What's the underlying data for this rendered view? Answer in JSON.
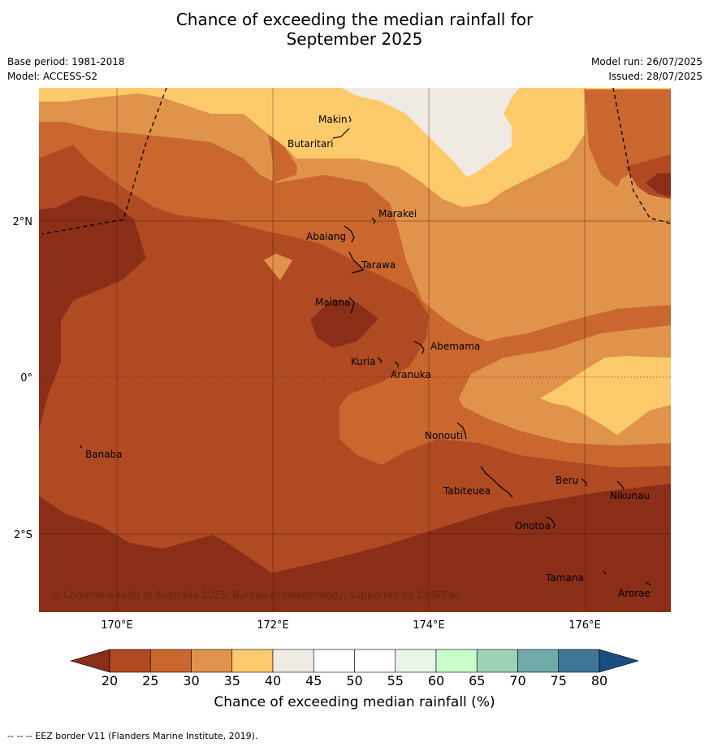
{
  "title_line1": "Chance of exceeding the median rainfall for",
  "title_line2": "September 2025",
  "meta_left": [
    "Base period: 1981-2018",
    "Model: ACCESS-S2"
  ],
  "meta_right": [
    "Model run: 26/07/2025",
    "Issued: 28/07/2025"
  ],
  "copyright": "© Commonwealth of Australia 2025, Bureau of Meteorology, supported by COSPPac",
  "lon_ticks": [
    "170°E",
    "172°E",
    "174°E",
    "176°E"
  ],
  "lat_ticks": [
    "2°N",
    "0°",
    "2°S"
  ],
  "places": [
    "Makin",
    "Butaritari",
    "Marakei",
    "Abaiang",
    "Tarawa",
    "Maiana",
    "Abemama",
    "Kuria",
    "Aranuka",
    "Nonouti",
    "Banaba",
    "Beru",
    "Tabiteuea",
    "Nikunau",
    "Onotoa",
    "Tamana",
    "Arorae"
  ],
  "colorbar": {
    "ticks": [
      "20",
      "25",
      "30",
      "35",
      "40",
      "45",
      "50",
      "55",
      "60",
      "65",
      "70",
      "75",
      "80"
    ],
    "colors": [
      "#8b2e18",
      "#b04a22",
      "#c9672f",
      "#e0934a",
      "#fdca6b",
      "#efeae4",
      "#ffffff",
      "#ffffff",
      "#e8f5e8",
      "#c8fcc8",
      "#9ed2b8",
      "#6fa9a8",
      "#3f7698",
      "#1a4e7e"
    ],
    "label": "Chance of exceeding median rainfall (%)"
  },
  "footer": "--  --  -- EEZ border V11 (Flanders Marine Institute, 2019)."
}
